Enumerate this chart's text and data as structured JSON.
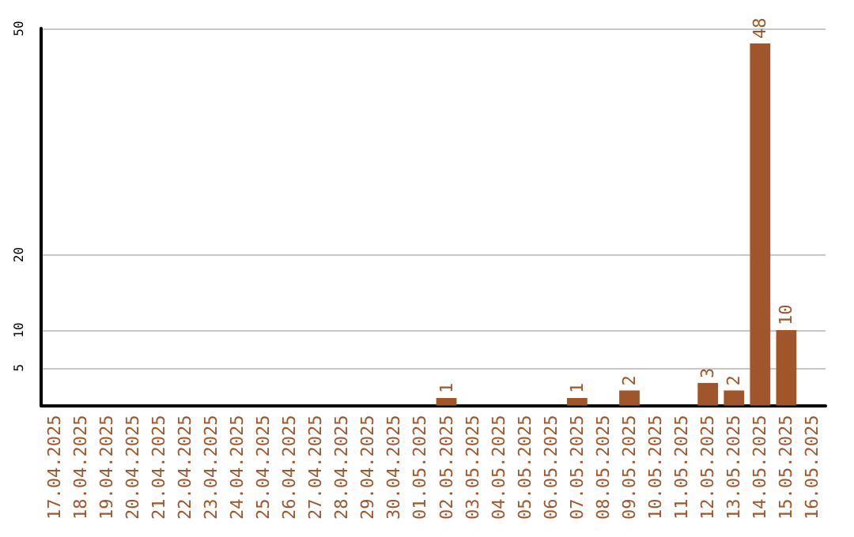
{
  "chart_data": {
    "type": "bar",
    "categories": [
      "17.04.2025",
      "18.04.2025",
      "19.04.2025",
      "20.04.2025",
      "21.04.2025",
      "22.04.2025",
      "23.04.2025",
      "24.04.2025",
      "25.04.2025",
      "26.04.2025",
      "27.04.2025",
      "28.04.2025",
      "29.04.2025",
      "30.04.2025",
      "01.05.2025",
      "02.05.2025",
      "03.05.2025",
      "04.05.2025",
      "05.05.2025",
      "06.05.2025",
      "07.05.2025",
      "08.05.2025",
      "09.05.2025",
      "10.05.2025",
      "11.05.2025",
      "12.05.2025",
      "13.05.2025",
      "14.05.2025",
      "15.05.2025",
      "16.05.2025"
    ],
    "values": [
      0,
      0,
      0,
      0,
      0,
      0,
      0,
      0,
      0,
      0,
      0,
      0,
      0,
      0,
      0,
      1,
      0,
      0,
      0,
      0,
      1,
      0,
      2,
      0,
      0,
      3,
      2,
      48,
      10,
      0
    ],
    "value_labels": [
      null,
      null,
      null,
      null,
      null,
      null,
      null,
      null,
      null,
      null,
      null,
      null,
      null,
      null,
      null,
      "1",
      null,
      null,
      null,
      null,
      "1",
      null,
      "2",
      null,
      null,
      "3",
      "2",
      "48",
      "10",
      null
    ],
    "color": "#a0562a",
    "ylim": [
      0,
      50
    ],
    "yticks": [
      5,
      10,
      20,
      50
    ],
    "grid": "y"
  }
}
